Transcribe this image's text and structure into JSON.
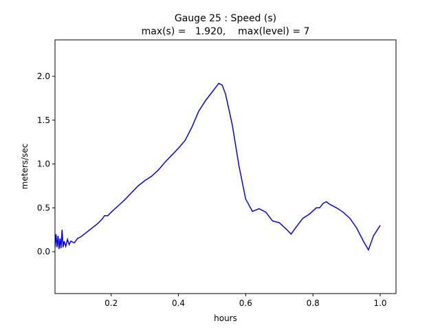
{
  "chart_data": {
    "type": "line",
    "title_lines": [
      "Gauge 25 : Speed (s)",
      "max(s) =   1.920,    max(level) = 7"
    ],
    "xlabel": "hours",
    "ylabel": "meters/sec",
    "xlim": [
      0.033,
      1.047
    ],
    "ylim": [
      -0.478,
      2.416
    ],
    "xticks": [
      0.2,
      0.4,
      0.6,
      0.8,
      {
        "value": 1.0,
        "label": "1.0"
      }
    ],
    "yticks": [
      {
        "value": 0.0,
        "label": "0.0"
      },
      0.5,
      {
        "value": 1.0,
        "label": "1.0"
      },
      1.5,
      {
        "value": 2.0,
        "label": "2.0"
      }
    ],
    "series": [
      {
        "color": "#0000ff",
        "x": [
          0.033,
          0.036,
          0.039,
          0.042,
          0.045,
          0.048,
          0.051,
          0.054,
          0.057,
          0.06,
          0.065,
          0.07,
          0.075,
          0.08,
          0.09,
          0.1,
          0.11,
          0.12,
          0.14,
          0.16,
          0.175,
          0.18,
          0.19,
          0.2,
          0.22,
          0.24,
          0.26,
          0.28,
          0.3,
          0.32,
          0.34,
          0.36,
          0.38,
          0.4,
          0.42,
          0.44,
          0.46,
          0.48,
          0.5,
          0.52,
          0.53,
          0.54,
          0.56,
          0.58,
          0.6,
          0.62,
          0.64,
          0.66,
          0.68,
          0.7,
          0.72,
          0.735,
          0.75,
          0.77,
          0.79,
          0.81,
          0.82,
          0.83,
          0.84,
          0.85,
          0.87,
          0.89,
          0.91,
          0.93,
          0.95,
          0.965,
          0.98,
          1.0
        ],
        "values": [
          0.05,
          0.2,
          0.05,
          0.18,
          0.03,
          0.15,
          0.04,
          0.25,
          0.05,
          0.12,
          0.06,
          0.14,
          0.08,
          0.12,
          0.1,
          0.15,
          0.17,
          0.2,
          0.26,
          0.32,
          0.38,
          0.41,
          0.41,
          0.45,
          0.52,
          0.59,
          0.67,
          0.75,
          0.81,
          0.86,
          0.93,
          1.02,
          1.1,
          1.18,
          1.27,
          1.42,
          1.6,
          1.72,
          1.82,
          1.92,
          1.9,
          1.8,
          1.45,
          0.98,
          0.6,
          0.46,
          0.49,
          0.45,
          0.35,
          0.33,
          0.26,
          0.2,
          0.28,
          0.38,
          0.43,
          0.5,
          0.5,
          0.55,
          0.57,
          0.54,
          0.5,
          0.45,
          0.38,
          0.27,
          0.12,
          0.02,
          0.18,
          0.3
        ]
      }
    ]
  }
}
